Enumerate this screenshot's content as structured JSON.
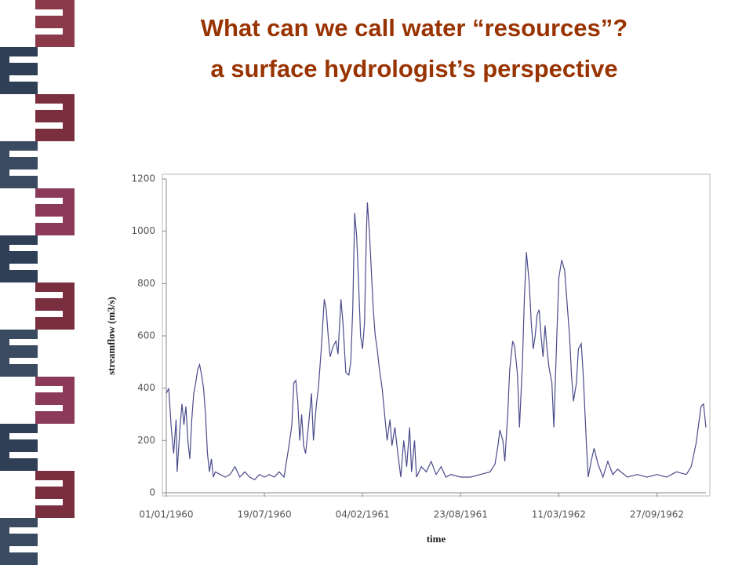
{
  "slide": {
    "title": [
      "What can we call water “resources”?",
      "a surface hydrologist’s perspective"
    ]
  },
  "chart_data": {
    "type": "line",
    "xlabel": "time",
    "ylabel": "streamflow (m3/s)",
    "color": "#4b4b8c",
    "xlim": [
      0,
      1100
    ],
    "ylim": [
      0,
      1200
    ],
    "yticks": [
      0,
      200,
      400,
      600,
      800,
      1000,
      1200
    ],
    "xticks": [
      {
        "value": 0,
        "label": "01/01/1960"
      },
      {
        "value": 200,
        "label": "19/07/1960"
      },
      {
        "value": 400,
        "label": "04/02/1961"
      },
      {
        "value": 600,
        "label": "23/08/1961"
      },
      {
        "value": 800,
        "label": "11/03/1962"
      },
      {
        "value": 1000,
        "label": "27/09/1962"
      }
    ],
    "x": [
      0,
      5,
      10,
      15,
      20,
      22,
      28,
      32,
      36,
      40,
      44,
      48,
      52,
      56,
      60,
      64,
      68,
      72,
      76,
      80,
      84,
      88,
      92,
      96,
      100,
      110,
      120,
      130,
      140,
      150,
      160,
      170,
      180,
      190,
      200,
      210,
      220,
      230,
      240,
      250,
      256,
      260,
      264,
      268,
      272,
      276,
      280,
      284,
      290,
      296,
      300,
      306,
      310,
      316,
      322,
      326,
      330,
      334,
      340,
      346,
      350,
      356,
      360,
      366,
      372,
      376,
      380,
      384,
      388,
      392,
      396,
      400,
      404,
      408,
      410,
      414,
      418,
      422,
      426,
      430,
      434,
      440,
      446,
      450,
      456,
      460,
      466,
      472,
      478,
      484,
      490,
      496,
      500,
      506,
      510,
      520,
      530,
      540,
      550,
      560,
      570,
      580,
      600,
      620,
      640,
      660,
      670,
      676,
      680,
      686,
      690,
      696,
      700,
      706,
      710,
      716,
      720,
      726,
      730,
      734,
      740,
      744,
      748,
      752,
      756,
      760,
      764,
      768,
      772,
      776,
      780,
      786,
      790,
      796,
      800,
      806,
      812,
      818,
      822,
      826,
      830,
      836,
      840,
      846,
      850,
      856,
      860,
      866,
      872,
      880,
      890,
      900,
      910,
      920,
      940,
      960,
      980,
      1000,
      1020,
      1040,
      1060,
      1070,
      1080,
      1090,
      1095,
      1100
    ],
    "values": [
      380,
      400,
      250,
      150,
      280,
      80,
      250,
      340,
      260,
      330,
      200,
      130,
      280,
      380,
      420,
      470,
      490,
      450,
      400,
      300,
      150,
      80,
      130,
      60,
      80,
      70,
      60,
      70,
      100,
      60,
      80,
      60,
      50,
      70,
      60,
      70,
      60,
      80,
      60,
      180,
      260,
      420,
      430,
      350,
      200,
      300,
      180,
      150,
      260,
      380,
      200,
      340,
      400,
      550,
      740,
      700,
      600,
      520,
      560,
      580,
      530,
      740,
      650,
      460,
      450,
      500,
      700,
      1070,
      980,
      800,
      600,
      550,
      650,
      1000,
      1110,
      1000,
      850,
      700,
      600,
      550,
      480,
      400,
      280,
      200,
      280,
      180,
      250,
      150,
      60,
      200,
      100,
      250,
      80,
      200,
      60,
      100,
      80,
      120,
      70,
      100,
      60,
      70,
      60,
      60,
      70,
      80,
      110,
      180,
      240,
      200,
      120,
      300,
      470,
      580,
      560,
      450,
      250,
      500,
      750,
      920,
      800,
      650,
      550,
      600,
      680,
      700,
      600,
      520,
      640,
      550,
      480,
      420,
      250,
      600,
      820,
      890,
      850,
      700,
      600,
      450,
      350,
      420,
      550,
      570,
      450,
      200,
      60,
      120,
      170,
      110,
      60,
      120,
      70,
      90,
      60,
      70,
      60,
      70,
      60,
      80,
      70,
      100,
      190,
      330,
      340,
      250
    ]
  }
}
